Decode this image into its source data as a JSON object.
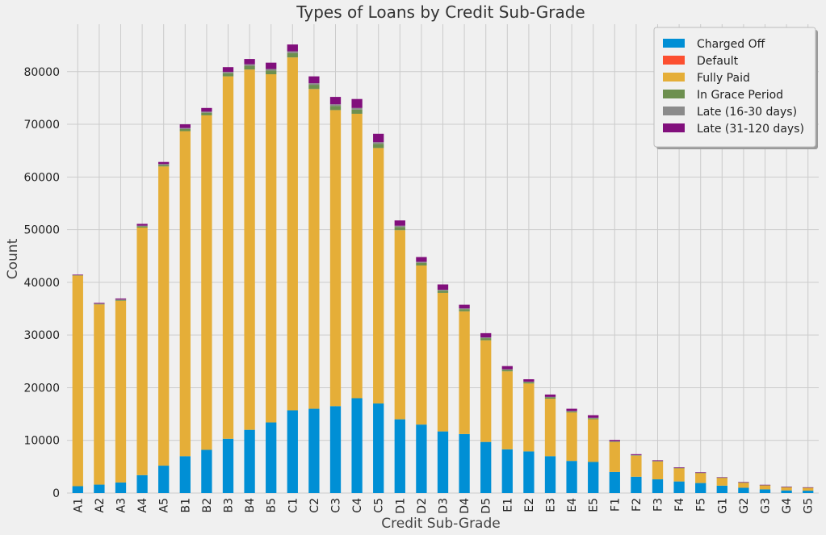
{
  "chart_data": {
    "type": "bar",
    "stacked": true,
    "title": "Types of Loans by Credit Sub-Grade",
    "xlabel": "Credit Sub-Grade",
    "ylabel": "Count",
    "ylim": [
      0,
      89000
    ],
    "yticks": [
      "0",
      "10000",
      "20000",
      "30000",
      "40000",
      "50000",
      "60000",
      "70000",
      "80000"
    ],
    "grid": true,
    "legend_position": "top-right",
    "categories": [
      "A1",
      "A2",
      "A3",
      "A4",
      "A5",
      "B1",
      "B2",
      "B3",
      "B4",
      "B5",
      "C1",
      "C2",
      "C3",
      "C4",
      "C5",
      "D1",
      "D2",
      "D3",
      "D4",
      "D5",
      "E1",
      "E2",
      "E3",
      "E4",
      "E5",
      "F1",
      "F2",
      "F3",
      "F4",
      "F5",
      "G1",
      "G2",
      "G3",
      "G4",
      "G5"
    ],
    "series": [
      {
        "name": "Charged Off",
        "color": "#008fd5",
        "values": [
          1300,
          1600,
          2000,
          3400,
          5200,
          7000,
          8200,
          10300,
          12000,
          13400,
          15700,
          16000,
          16500,
          18000,
          17000,
          14000,
          13000,
          11700,
          11200,
          9700,
          8300,
          7900,
          7000,
          6100,
          5900,
          4000,
          3100,
          2600,
          2200,
          1900,
          1400,
          1000,
          700,
          500,
          450
        ]
      },
      {
        "name": "Default",
        "color": "#fc4f30",
        "values": [
          0,
          0,
          0,
          0,
          0,
          0,
          0,
          0,
          0,
          0,
          0,
          0,
          0,
          0,
          0,
          0,
          0,
          0,
          0,
          0,
          0,
          0,
          0,
          0,
          0,
          0,
          0,
          0,
          0,
          0,
          0,
          0,
          0,
          0,
          0
        ]
      },
      {
        "name": "Fully Paid",
        "color": "#e5ae38",
        "values": [
          40000,
          34200,
          34500,
          47000,
          56800,
          61700,
          63500,
          68800,
          68400,
          66100,
          67000,
          60700,
          56200,
          54000,
          48500,
          35900,
          30200,
          26300,
          23300,
          19300,
          14800,
          12900,
          10900,
          9200,
          8100,
          5700,
          4000,
          3400,
          2500,
          1900,
          1500,
          1000,
          800,
          650,
          600
        ]
      },
      {
        "name": "In Grace Period",
        "color": "#6d904f",
        "values": [
          50,
          100,
          150,
          250,
          300,
          400,
          500,
          600,
          700,
          700,
          800,
          800,
          800,
          800,
          800,
          600,
          500,
          400,
          400,
          400,
          300,
          250,
          250,
          200,
          200,
          100,
          80,
          70,
          60,
          50,
          40,
          30,
          20,
          15,
          10
        ]
      },
      {
        "name": "Late (16-30 days)",
        "color": "#8b8b8b",
        "values": [
          20,
          50,
          80,
          100,
          150,
          200,
          200,
          250,
          300,
          300,
          350,
          300,
          300,
          300,
          300,
          250,
          200,
          200,
          150,
          150,
          100,
          100,
          100,
          80,
          80,
          50,
          40,
          30,
          30,
          20,
          15,
          10,
          10,
          5,
          5
        ]
      },
      {
        "name": "Late (31-120 days)",
        "color": "#810f7c",
        "values": [
          100,
          150,
          200,
          350,
          400,
          700,
          700,
          900,
          1000,
          1200,
          1300,
          1300,
          1400,
          1700,
          1600,
          1000,
          900,
          1000,
          700,
          800,
          600,
          450,
          450,
          420,
          500,
          230,
          160,
          120,
          100,
          90,
          50,
          60,
          40,
          30,
          30
        ]
      }
    ]
  }
}
